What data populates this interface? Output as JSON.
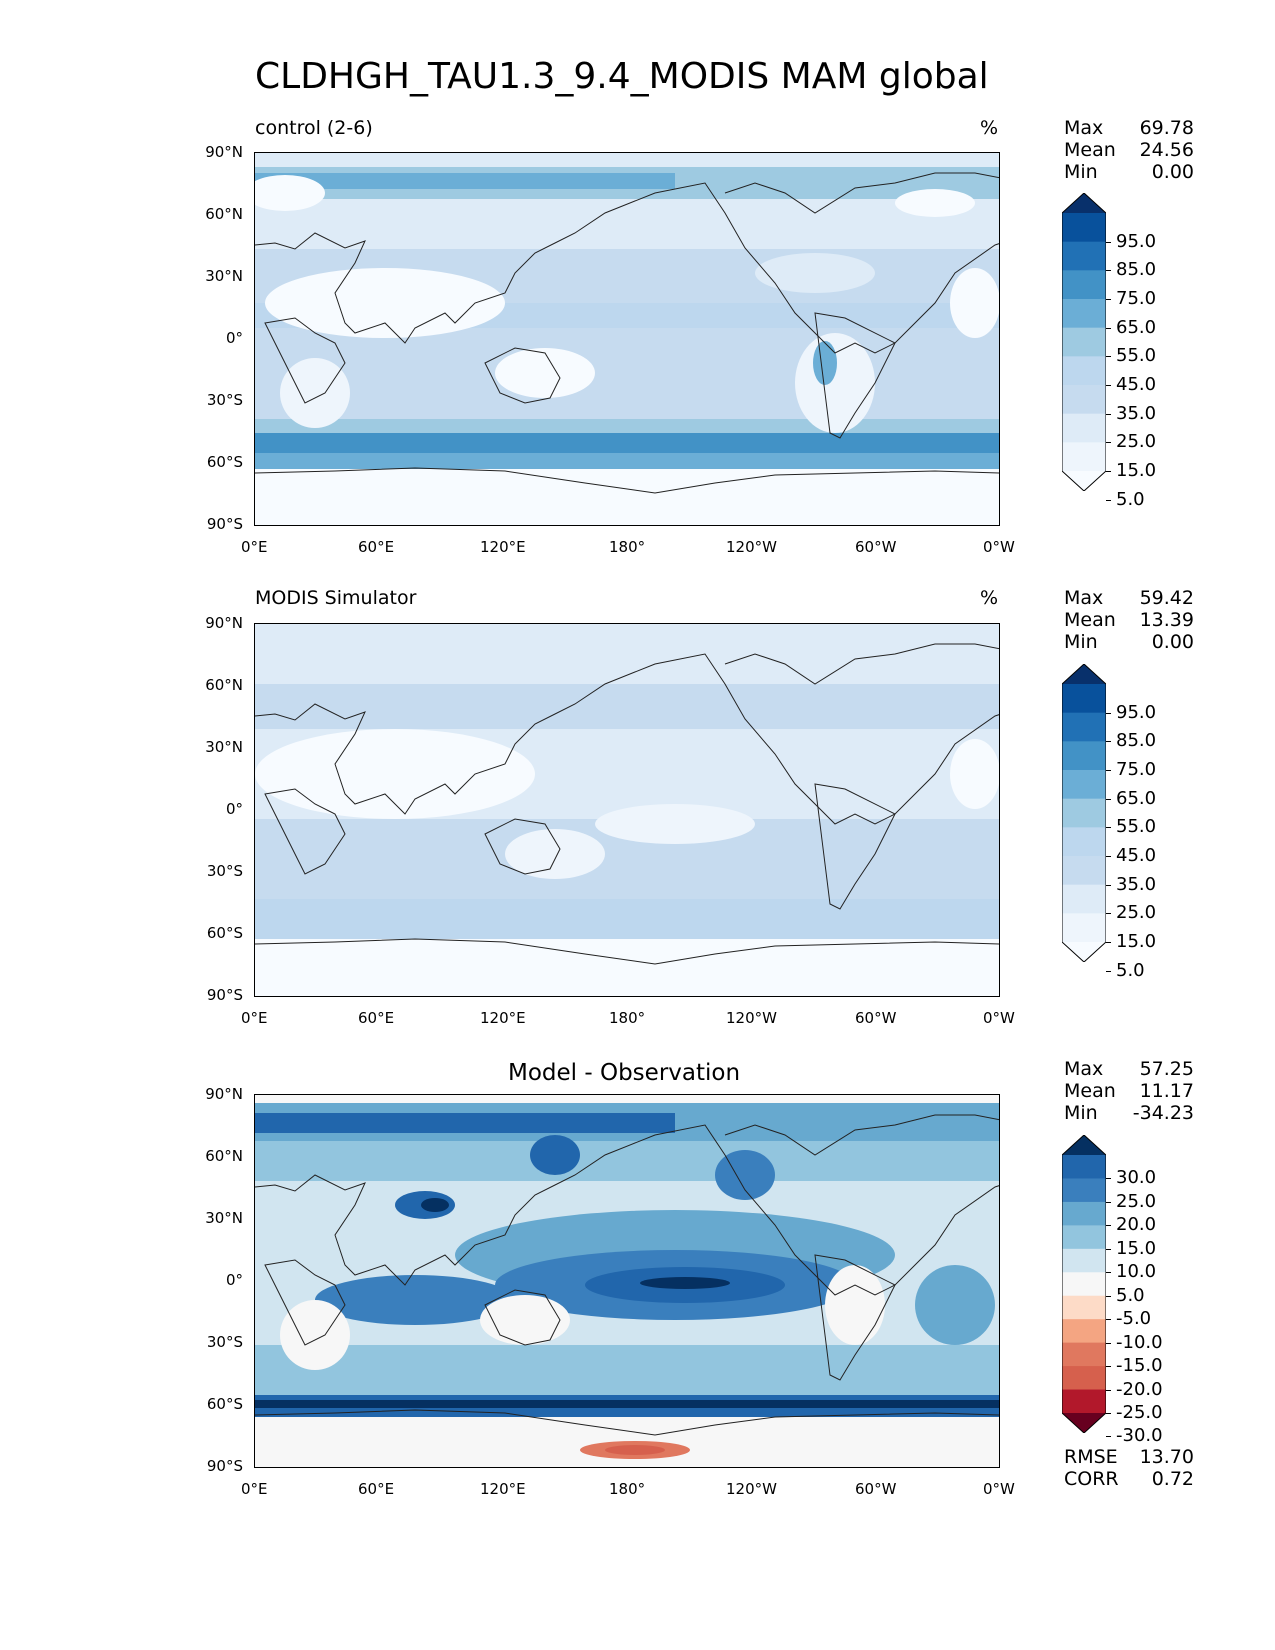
{
  "title": "CLDHGH_TAU1.3_9.4_MODIS MAM global",
  "axes": {
    "lat_ticks": [
      "90°N",
      "60°N",
      "30°N",
      "0°",
      "30°S",
      "60°S",
      "90°S"
    ],
    "lon_ticks": [
      "0°E",
      "60°E",
      "120°E",
      "180°",
      "120°W",
      "60°W",
      "0°W"
    ]
  },
  "panels": [
    {
      "id": "test",
      "label": "control (2-6)",
      "units": "%",
      "stats": [
        {
          "name": "Max",
          "value": "69.78"
        },
        {
          "name": "Mean",
          "value": "24.56"
        },
        {
          "name": "Min",
          "value": "0.00"
        }
      ],
      "colorbar_levels": [
        "95.0",
        "85.0",
        "75.0",
        "65.0",
        "55.0",
        "45.0",
        "35.0",
        "25.0",
        "15.0",
        "5.0"
      ],
      "colorbar_colors": [
        "#08306b",
        "#08519c",
        "#2171b5",
        "#4292c6",
        "#6baed6",
        "#9ecae1",
        "#bdd7ee",
        "#c6dbef",
        "#deebf7",
        "#eef5fc",
        "#f7fbff"
      ]
    },
    {
      "id": "reference",
      "label": "MODIS Simulator",
      "units": "%",
      "stats": [
        {
          "name": "Max",
          "value": "59.42"
        },
        {
          "name": "Mean",
          "value": "13.39"
        },
        {
          "name": "Min",
          "value": "0.00"
        }
      ],
      "colorbar_levels": [
        "95.0",
        "85.0",
        "75.0",
        "65.0",
        "55.0",
        "45.0",
        "35.0",
        "25.0",
        "15.0",
        "5.0"
      ],
      "colorbar_colors": [
        "#08306b",
        "#08519c",
        "#2171b5",
        "#4292c6",
        "#6baed6",
        "#9ecae1",
        "#bdd7ee",
        "#c6dbef",
        "#deebf7",
        "#eef5fc",
        "#f7fbff"
      ]
    },
    {
      "id": "diff",
      "label": "Model - Observation",
      "units": "",
      "stats": [
        {
          "name": "Max",
          "value": "57.25"
        },
        {
          "name": "Mean",
          "value": "11.17"
        },
        {
          "name": "Min",
          "value": "-34.23"
        }
      ],
      "colorbar_levels": [
        "30.0",
        "25.0",
        "20.0",
        "15.0",
        "10.0",
        "5.0",
        "-5.0",
        "-10.0",
        "-15.0",
        "-20.0",
        "-25.0",
        "-30.0"
      ],
      "colorbar_colors": [
        "#053061",
        "#2166ac",
        "#3a7fbd",
        "#67a9cf",
        "#92c5de",
        "#d1e5f0",
        "#f7f7f7",
        "#fddbc7",
        "#f4a582",
        "#e0785f",
        "#d6604d",
        "#b2182b",
        "#67001f"
      ],
      "extra_stats": [
        {
          "name": "RMSE",
          "value": "13.70"
        },
        {
          "name": "CORR",
          "value": "0.72"
        }
      ]
    }
  ]
}
